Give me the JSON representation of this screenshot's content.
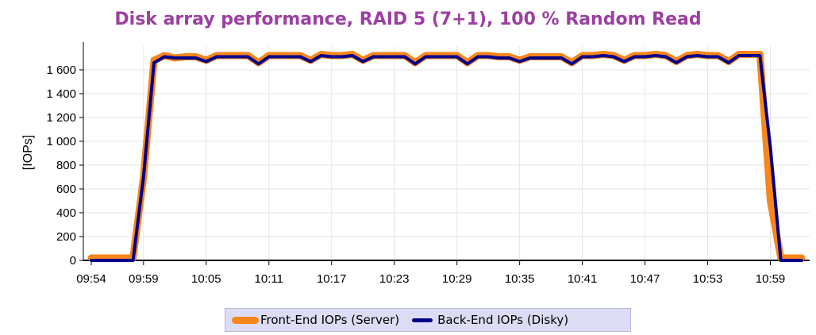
{
  "chart_data": {
    "type": "line",
    "title": "Disk array performance, RAID 5 (7+1), 100 % Random Read",
    "xlabel": "",
    "ylabel": "[IOPs]",
    "x_tick_labels": [
      "09:54",
      "09:59",
      "10:05",
      "10:11",
      "10:17",
      "10:23",
      "10:29",
      "10:35",
      "10:41",
      "10:47",
      "10:53",
      "10:59"
    ],
    "y_tick_labels": [
      "0",
      "200",
      "400",
      "600",
      "800",
      "1 000",
      "1 200",
      "1 400",
      "1 600"
    ],
    "ylim": [
      0,
      1800
    ],
    "grid": true,
    "legend_position": "bottom",
    "x": [
      "09:54",
      "09:55",
      "09:56",
      "09:57",
      "09:58",
      "09:59",
      "10:00",
      "10:01",
      "10:02",
      "10:03",
      "10:04",
      "10:05",
      "10:06",
      "10:07",
      "10:08",
      "10:09",
      "10:10",
      "10:11",
      "10:12",
      "10:13",
      "10:14",
      "10:15",
      "10:16",
      "10:17",
      "10:18",
      "10:19",
      "10:20",
      "10:21",
      "10:22",
      "10:23",
      "10:24",
      "10:25",
      "10:26",
      "10:27",
      "10:28",
      "10:29",
      "10:30",
      "10:31",
      "10:32",
      "10:33",
      "10:34",
      "10:35",
      "10:36",
      "10:37",
      "10:38",
      "10:39",
      "10:40",
      "10:41",
      "10:42",
      "10:43",
      "10:44",
      "10:45",
      "10:46",
      "10:47",
      "10:48",
      "10:49",
      "10:50",
      "10:51",
      "10:52",
      "10:53",
      "10:54",
      "10:55",
      "10:56",
      "10:57",
      "10:58",
      "10:59",
      "11:00",
      "11:01",
      "11:02"
    ],
    "series": [
      {
        "name": "Front-End IOPs (Server)",
        "color": "#f7861c",
        "values": [
          20,
          20,
          20,
          20,
          20,
          700,
          1680,
          1720,
          1700,
          1710,
          1710,
          1680,
          1720,
          1720,
          1720,
          1720,
          1660,
          1720,
          1720,
          1720,
          1720,
          1680,
          1730,
          1720,
          1720,
          1730,
          1680,
          1720,
          1720,
          1720,
          1720,
          1660,
          1720,
          1720,
          1720,
          1720,
          1660,
          1720,
          1720,
          1710,
          1710,
          1680,
          1710,
          1710,
          1710,
          1710,
          1660,
          1720,
          1720,
          1730,
          1720,
          1680,
          1720,
          1720,
          1730,
          1720,
          1670,
          1720,
          1730,
          1720,
          1720,
          1670,
          1730,
          1730,
          1730,
          500,
          20,
          20,
          20
        ]
      },
      {
        "name": "Back-End IOPs (Disky)",
        "color": "#00008b",
        "values": [
          0,
          0,
          0,
          0,
          0,
          700,
          1660,
          1710,
          1700,
          1700,
          1700,
          1670,
          1710,
          1710,
          1710,
          1710,
          1650,
          1710,
          1710,
          1710,
          1710,
          1670,
          1720,
          1710,
          1710,
          1720,
          1670,
          1710,
          1710,
          1710,
          1710,
          1650,
          1710,
          1710,
          1710,
          1710,
          1650,
          1710,
          1710,
          1700,
          1700,
          1670,
          1700,
          1700,
          1700,
          1700,
          1650,
          1710,
          1710,
          1720,
          1710,
          1670,
          1710,
          1710,
          1720,
          1710,
          1660,
          1710,
          1720,
          1710,
          1710,
          1660,
          1720,
          1720,
          1720,
          950,
          0,
          0,
          0
        ]
      }
    ]
  }
}
